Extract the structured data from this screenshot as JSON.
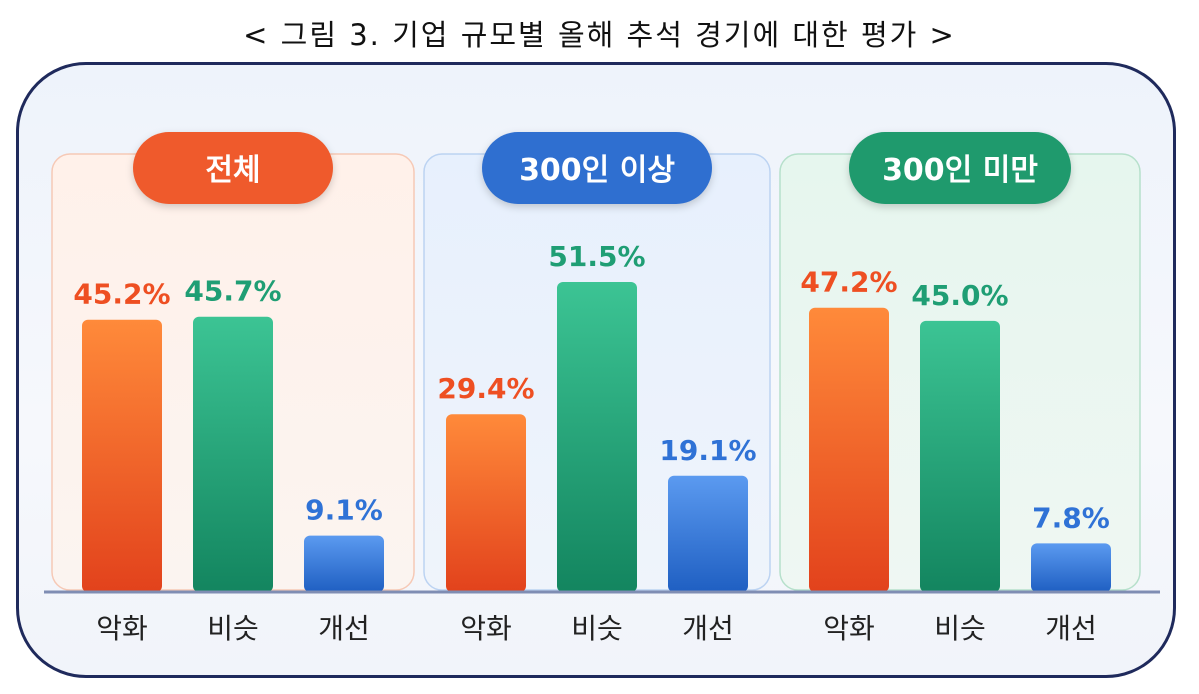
{
  "title": "< 그림 3. 기업 규모별 올해 추석 경기에 대한 평가 >",
  "colors": {
    "worse": "#ee4f22",
    "similar": "#1f9e74",
    "better": "#2f72d6",
    "group_pills": [
      "#ef5a2c",
      "#2f6fd0",
      "#1f9a6d"
    ]
  },
  "chart_data": {
    "type": "bar",
    "ylim": [
      0,
      55
    ],
    "groups": [
      {
        "label": "전체",
        "categories": [
          "악화",
          "비슷",
          "개선"
        ],
        "values": [
          45.2,
          45.7,
          9.1
        ],
        "value_labels": [
          "45.2%",
          "45.7%",
          "9.1%"
        ]
      },
      {
        "label": "300인 이상",
        "categories": [
          "악화",
          "비슷",
          "개선"
        ],
        "values": [
          29.4,
          51.5,
          19.1
        ],
        "value_labels": [
          "29.4%",
          "51.5%",
          "19.1%"
        ]
      },
      {
        "label": "300인 미만",
        "categories": [
          "악화",
          "비슷",
          "개선"
        ],
        "values": [
          47.2,
          45.0,
          7.8
        ],
        "value_labels": [
          "47.2%",
          "45.0%",
          "7.8%"
        ]
      }
    ]
  }
}
